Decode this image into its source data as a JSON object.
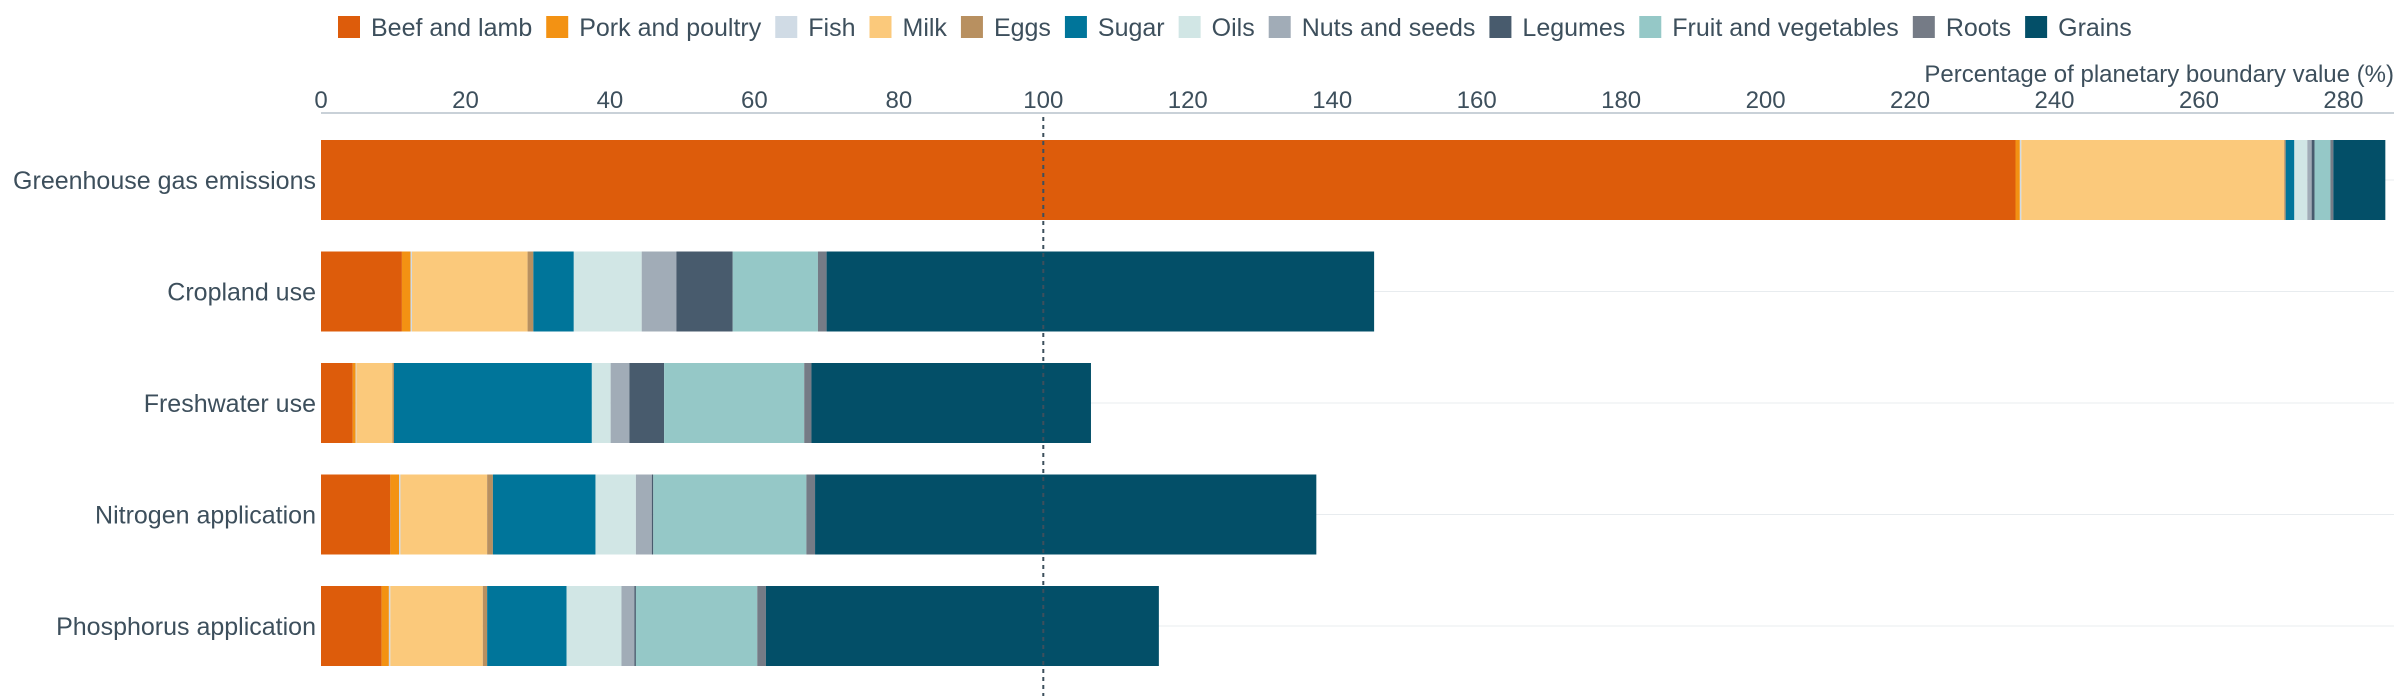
{
  "chart_data": {
    "type": "bar",
    "orientation": "horizontal",
    "stacked": true,
    "title": "",
    "xlabel": "Percentage of planetary boundary value (%)",
    "ylabel": "",
    "xlim": [
      0,
      287
    ],
    "xticks": [
      0,
      20,
      40,
      60,
      80,
      100,
      120,
      140,
      160,
      180,
      200,
      220,
      240,
      260,
      280
    ],
    "reference_line": {
      "value": 100,
      "style": "dotted"
    },
    "legend_position": "top",
    "grid": "horizontal row lines",
    "categories": [
      "Greenhouse gas emissions",
      "Cropland use",
      "Freshwater use",
      "Nitrogen application",
      "Phosphorus application"
    ],
    "series": [
      {
        "name": "Beef and lamb",
        "color": "#dd5c0b",
        "values": [
          234.6,
          11.2,
          4.4,
          9.6,
          8.4
        ]
      },
      {
        "name": "Pork and poultry",
        "color": "#f39213",
        "values": [
          0.6,
          1.2,
          0.4,
          1.2,
          1.0
        ]
      },
      {
        "name": "Fish",
        "color": "#d0dbe5",
        "values": [
          0.2,
          0.2,
          0.1,
          0.2,
          0.2
        ]
      },
      {
        "name": "Milk",
        "color": "#fbc97b",
        "values": [
          36.4,
          16.0,
          5.0,
          12.0,
          12.8
        ]
      },
      {
        "name": "Eggs",
        "color": "#b89060",
        "values": [
          0.2,
          0.8,
          0.2,
          0.8,
          0.6
        ]
      },
      {
        "name": "Sugar",
        "color": "#00759a",
        "values": [
          1.2,
          5.6,
          27.4,
          14.2,
          11.0
        ]
      },
      {
        "name": "Oils",
        "color": "#d1e6e5",
        "values": [
          1.8,
          9.4,
          2.6,
          5.6,
          7.6
        ]
      },
      {
        "name": "Nuts and seeds",
        "color": "#a1acb7",
        "values": [
          0.6,
          4.8,
          2.6,
          2.2,
          1.8
        ]
      },
      {
        "name": "Legumes",
        "color": "#485b6d",
        "values": [
          0.4,
          7.8,
          4.8,
          0.2,
          0.2
        ]
      },
      {
        "name": "Fruit and vegetables",
        "color": "#95c8c7",
        "values": [
          2.2,
          11.8,
          19.4,
          21.2,
          16.8
        ]
      },
      {
        "name": "Roots",
        "color": "#757b86",
        "values": [
          0.4,
          1.2,
          1.0,
          1.2,
          1.2
        ]
      },
      {
        "name": "Grains",
        "color": "#034f68",
        "values": [
          7.2,
          75.8,
          38.7,
          69.4,
          54.4
        ]
      }
    ]
  }
}
